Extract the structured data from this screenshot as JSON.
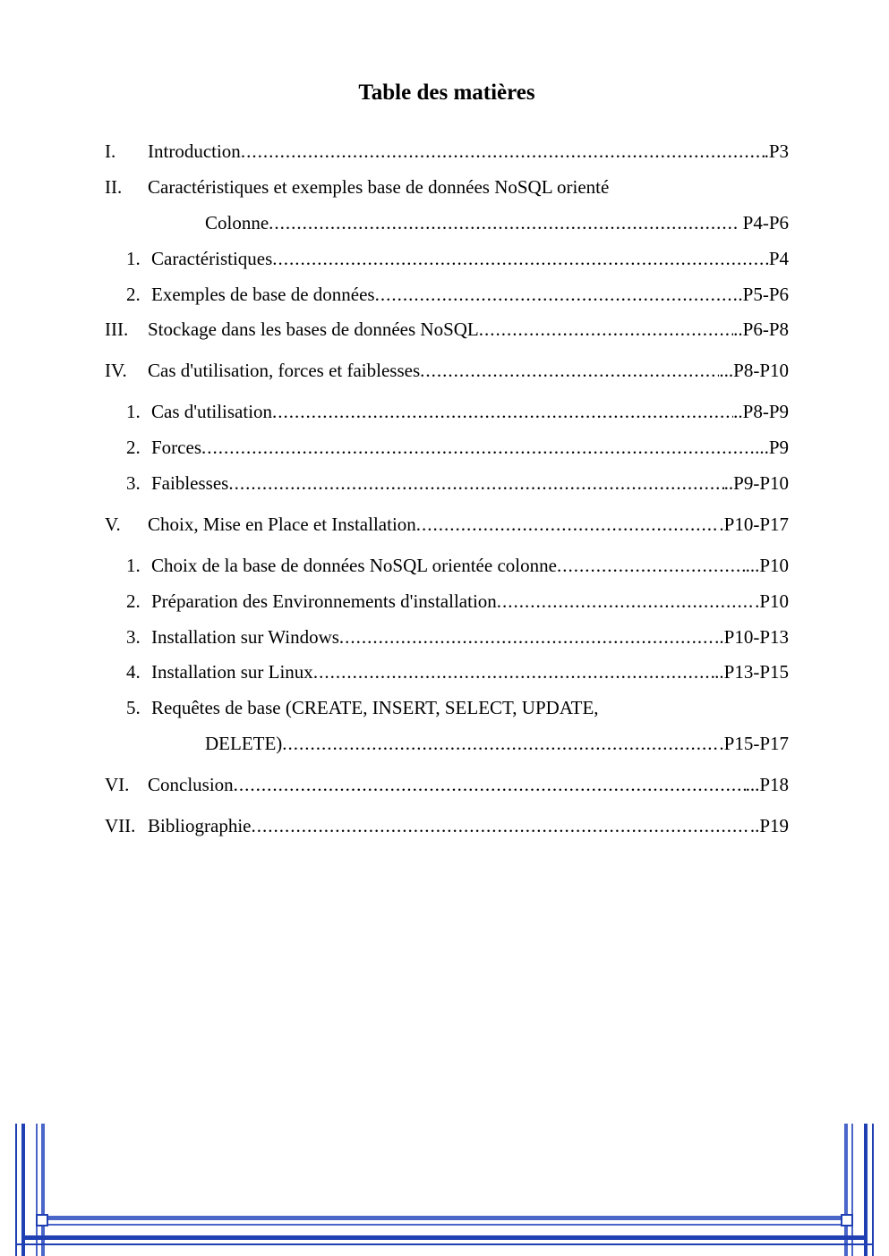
{
  "colors": {
    "text": "#000000",
    "background": "#ffffff",
    "frame_outer": "#1f3fb3",
    "frame_inner": "#4a66c9"
  },
  "typography": {
    "family": "Times New Roman",
    "title_size_pt": 17,
    "body_size_pt": 14,
    "title_weight": "bold"
  },
  "title": "Table des matières",
  "entries": [
    {
      "type": "roman",
      "num": "I.",
      "label": "Introduction",
      "page": ".P3"
    },
    {
      "type": "roman",
      "num": "II.",
      "label": "Caractéristiques et exemples base de données NoSQL orienté",
      "page": ""
    },
    {
      "type": "cont",
      "label": "Colonne",
      "page": " P4-P6"
    },
    {
      "type": "arabic",
      "num": "1.",
      "label": "Caractéristiques",
      "page": "P4"
    },
    {
      "type": "arabic",
      "num": "2.",
      "label": "Exemples de base de données",
      "page": ".P5-P6"
    },
    {
      "type": "roman",
      "num": "III.",
      "label": "Stockage dans les bases de données NoSQL",
      "page": "..P6-P8"
    },
    {
      "type": "gap"
    },
    {
      "type": "roman",
      "num": "IV.",
      "label": "Cas d'utilisation, forces et faiblesses",
      "page": "...P8-P10"
    },
    {
      "type": "gap"
    },
    {
      "type": "arabic",
      "num": "1.",
      "label": "Cas d'utilisation",
      "page": "..P8-P9"
    },
    {
      "type": "arabic",
      "num": "2.",
      "label": "Forces",
      "page": "...P9"
    },
    {
      "type": "arabic",
      "num": "3.",
      "label": "Faiblesses",
      "page": "..P9-P10"
    },
    {
      "type": "gap"
    },
    {
      "type": "roman",
      "num": "V.",
      "label": "Choix, Mise en Place et Installation",
      "page": ".P10-P17"
    },
    {
      "type": "gap"
    },
    {
      "type": "arabic",
      "num": "1.",
      "label": "Choix de la base de données NoSQL orientée colonne",
      "page": "...P10"
    },
    {
      "type": "arabic",
      "num": "2.",
      "label": "Préparation des Environnements d'installation",
      "page": ".P10"
    },
    {
      "type": "arabic",
      "num": "3.",
      "label": "Installation sur Windows",
      "page": "..P10-P13"
    },
    {
      "type": "arabic",
      "num": "4.",
      "label": "Installation sur Linux",
      "page": "..P13-P15"
    },
    {
      "type": "arabic",
      "num": "5.",
      "label": "Requêtes de base (CREATE, INSERT, SELECT, UPDATE,",
      "page": ""
    },
    {
      "type": "cont",
      "label": "DELETE)",
      "page": ".P15-P17"
    },
    {
      "type": "gap"
    },
    {
      "type": "roman",
      "num": "VI.",
      "label": "Conclusion",
      "page": "...P18"
    },
    {
      "type": "gap"
    },
    {
      "type": "roman",
      "num": "VII.",
      "label": "Bibliographie",
      "page": "..P19"
    }
  ],
  "leader_char": ".",
  "leader_repeat": 120
}
